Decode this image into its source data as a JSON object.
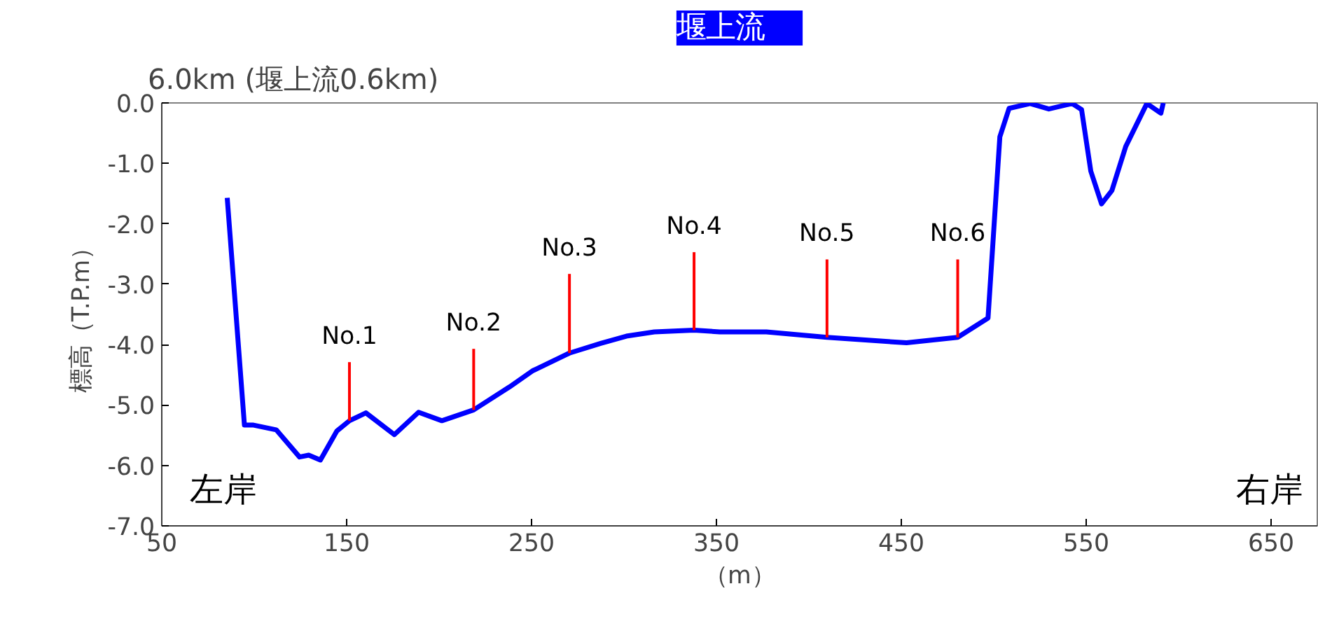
{
  "chart_data": {
    "type": "line",
    "title": "6.0km (堰上流0.6km)",
    "subtitle": "堰上流",
    "xlabel": "（m）",
    "ylabel": "標高（T.P.m）",
    "xlim": [
      50,
      675
    ],
    "ylim": [
      -7,
      0
    ],
    "xticks": [
      50,
      150,
      250,
      350,
      450,
      550,
      650
    ],
    "yticks": [
      {
        "value": 0,
        "label": "0.0"
      },
      {
        "value": -1,
        "label": "-1.0"
      },
      {
        "value": -2,
        "label": "-2.0"
      },
      {
        "value": -3,
        "label": "-3.0"
      },
      {
        "value": -4,
        "label": "-4.0"
      },
      {
        "value": -5,
        "label": "-5.0"
      },
      {
        "value": -6,
        "label": "-6.0"
      },
      {
        "value": -7,
        "label": "-7.0"
      }
    ],
    "grid": false,
    "marker": "none",
    "line_style": "solid",
    "series": [
      {
        "color": "#0000ff",
        "x": [
          85.4,
          94.7,
          99.2,
          111.9,
          124.5,
          129.5,
          135.8,
          144.7,
          151.5,
          160.4,
          175.8,
          188.9,
          201.5,
          218.7,
          238.1,
          250.8,
          270.5,
          287.4,
          301.3,
          316.4,
          337.9,
          351.8,
          377,
          409.8,
          452.8,
          480.5,
          496.9,
          503.3,
          508.3,
          519.7,
          529.8,
          542.4,
          547.5,
          552.5,
          558.3,
          563.9,
          571.4,
          582.8,
          590.4,
          591.7
        ],
        "values": [
          -1.57,
          -5.33,
          -5.33,
          -5.41,
          -5.86,
          -5.83,
          -5.91,
          -5.43,
          -5.26,
          -5.13,
          -5.49,
          -5.12,
          -5.26,
          -5.08,
          -4.7,
          -4.43,
          -4.14,
          -3.98,
          -3.86,
          -3.79,
          -3.76,
          -3.79,
          -3.79,
          -3.88,
          -3.97,
          -3.88,
          -3.56,
          -0.56,
          -0.09,
          -0.01,
          -0.1,
          -0.01,
          -0.11,
          -1.13,
          -1.67,
          -1.45,
          -0.72,
          -0.01,
          -0.17,
          0.0
        ]
      },
      {
        "color": "#ff0000",
        "x": [
          151.5,
          151.5
        ],
        "values": [
          -5.26,
          -4.29
        ]
      },
      {
        "color": "#ff0000",
        "x": [
          218.7,
          218.7
        ],
        "values": [
          -5.08,
          -4.07
        ]
      },
      {
        "color": "#ff0000",
        "x": [
          270.5,
          270.5
        ],
        "values": [
          -4.14,
          -2.83
        ]
      },
      {
        "color": "#ff0000",
        "x": [
          337.9,
          337.9
        ],
        "values": [
          -3.76,
          -2.47
        ]
      },
      {
        "color": "#ff0000",
        "x": [
          409.8,
          409.8
        ],
        "values": [
          -3.88,
          -2.59
        ]
      },
      {
        "color": "#ff0000",
        "x": [
          480.5,
          480.5
        ],
        "values": [
          -3.88,
          -2.59
        ]
      }
    ],
    "annotations": [
      {
        "text": "No.1",
        "x": 151.5,
        "y": -4.29
      },
      {
        "text": "No.2",
        "x": 218.7,
        "y": -4.07
      },
      {
        "text": "No.3",
        "x": 270.5,
        "y": -2.83
      },
      {
        "text": "No.4",
        "x": 337.9,
        "y": -2.47
      },
      {
        "text": "No.5",
        "x": 409.8,
        "y": -2.59
      },
      {
        "text": "No.6",
        "x": 480.5,
        "y": -2.59
      },
      "左岸",
      "右岸"
    ]
  }
}
